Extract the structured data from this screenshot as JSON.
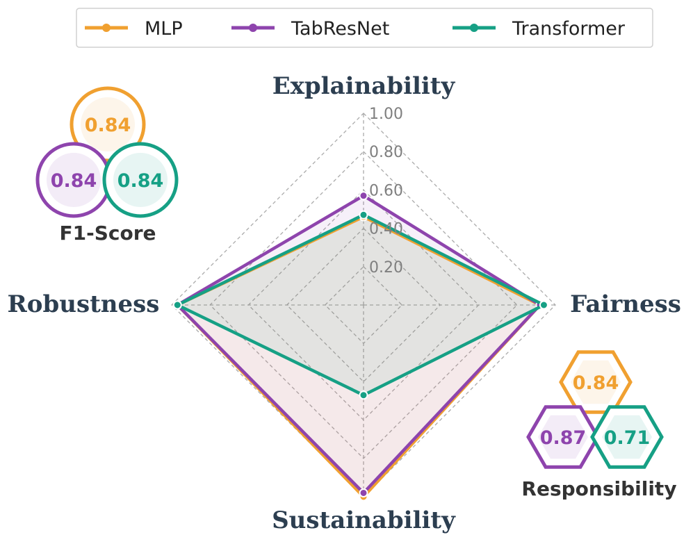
{
  "chart_data": {
    "type": "radar",
    "axes": [
      "Explainability",
      "Fairness",
      "Sustainability",
      "Robustness"
    ],
    "rmax": 1.0,
    "ticks": [
      "0.20",
      "0.40",
      "0.60",
      "0.80",
      "1.00"
    ],
    "tick_values": [
      0.2,
      0.4,
      0.6,
      0.8,
      1.0
    ],
    "grid": true,
    "legend_position": "top",
    "series": [
      {
        "name": "MLP",
        "color": "#f0a030",
        "values": [
          0.46,
          0.92,
          1.0,
          0.97
        ]
      },
      {
        "name": "TabResNet",
        "color": "#8e44ad",
        "values": [
          0.57,
          0.92,
          0.98,
          0.97
        ]
      },
      {
        "name": "Transformer",
        "color": "#16a085",
        "values": [
          0.47,
          0.94,
          0.47,
          0.97
        ]
      }
    ],
    "badges": [
      {
        "title": "F1-Score",
        "shape": "circle",
        "position": "top-left",
        "values": [
          "0.84",
          "0.84",
          "0.84"
        ]
      },
      {
        "title": "Responsibility",
        "shape": "hexagon",
        "position": "bottom-right",
        "values": [
          "0.84",
          "0.87",
          "0.71"
        ]
      }
    ]
  }
}
